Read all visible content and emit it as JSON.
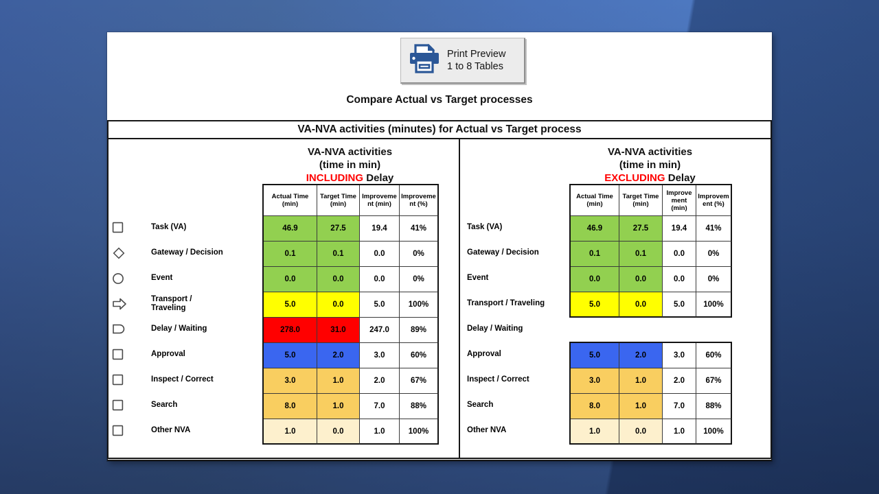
{
  "print_button": {
    "label_line1": "Print Preview",
    "label_line2": "1 to 8 Tables",
    "icon": "printer-icon",
    "icon_color": "#2b5797"
  },
  "page_title": "Compare Actual vs Target processes",
  "band_title": "VA-NVA activities (minutes) for Actual vs Target process",
  "emphasis_color": "#FF0000",
  "status_colors": {
    "value_added_green": "#92D050",
    "transport_yellow": "#FFFF00",
    "delay_red": "#FF0000",
    "approval_blue": "#3A66F0",
    "nva_amber": "#F9CE60",
    "other_cream": "#FDF0CD"
  },
  "tables": [
    {
      "heading_line1": "VA-NVA activities",
      "heading_line2": "(time in min)",
      "heading_emphasis": "INCLUDING",
      "heading_rest": " Delay",
      "columns": [
        "Actual Time (min)",
        "Target Time (min)",
        "Improvement (min)",
        "Improvement (%)"
      ],
      "show_icons": true,
      "rows": [
        {
          "icon": "square",
          "label": "Task (VA)",
          "fill": "#92D050",
          "values": [
            "46.9",
            "27.5",
            "19.4",
            "41%"
          ]
        },
        {
          "icon": "diamond",
          "label": "Gateway / Decision",
          "fill": "#92D050",
          "values": [
            "0.1",
            "0.1",
            "0.0",
            "0%"
          ]
        },
        {
          "icon": "circle",
          "label": "Event",
          "fill": "#92D050",
          "values": [
            "0.0",
            "0.0",
            "0.0",
            "0%"
          ]
        },
        {
          "icon": "arrow-right",
          "label": "Transport / Traveling",
          "fill": "#FFFF00",
          "values": [
            "5.0",
            "0.0",
            "5.0",
            "100%"
          ]
        },
        {
          "icon": "delay",
          "label": "Delay / Waiting",
          "fill": "#FF0000",
          "values": [
            "278.0",
            "31.0",
            "247.0",
            "89%"
          ]
        },
        {
          "icon": "square",
          "label": "Approval",
          "fill": "#3A66F0",
          "values": [
            "5.0",
            "2.0",
            "3.0",
            "60%"
          ]
        },
        {
          "icon": "square",
          "label": "Inspect / Correct",
          "fill": "#F9CE60",
          "values": [
            "3.0",
            "1.0",
            "2.0",
            "67%"
          ]
        },
        {
          "icon": "square",
          "label": "Search",
          "fill": "#F9CE60",
          "values": [
            "8.0",
            "1.0",
            "7.0",
            "88%"
          ]
        },
        {
          "icon": "square",
          "label": "Other NVA",
          "fill": "#FDF0CD",
          "values": [
            "1.0",
            "0.0",
            "1.0",
            "100%"
          ]
        }
      ]
    },
    {
      "heading_line1": "VA-NVA activities",
      "heading_line2": "(time in min)",
      "heading_emphasis": "EXCLUDING",
      "heading_rest": " Delay",
      "columns": [
        "Actual Time (min)",
        "Target Time (min)",
        "Improvement (min)",
        "Improvement (%)"
      ],
      "show_icons": false,
      "rows": [
        {
          "label": "Task (VA)",
          "fill": "#92D050",
          "values": [
            "46.9",
            "27.5",
            "19.4",
            "41%"
          ]
        },
        {
          "label": "Gateway / Decision",
          "fill": "#92D050",
          "values": [
            "0.1",
            "0.1",
            "0.0",
            "0%"
          ]
        },
        {
          "label": "Event",
          "fill": "#92D050",
          "values": [
            "0.0",
            "0.0",
            "0.0",
            "0%"
          ]
        },
        {
          "label": "Transport / Traveling",
          "fill": "#FFFF00",
          "values": [
            "5.0",
            "0.0",
            "5.0",
            "100%"
          ]
        },
        {
          "label": "Delay / Waiting",
          "empty": true
        },
        {
          "label": "Approval",
          "fill": "#3A66F0",
          "values": [
            "5.0",
            "2.0",
            "3.0",
            "60%"
          ]
        },
        {
          "label": "Inspect / Correct",
          "fill": "#F9CE60",
          "values": [
            "3.0",
            "1.0",
            "2.0",
            "67%"
          ]
        },
        {
          "label": "Search",
          "fill": "#F9CE60",
          "values": [
            "8.0",
            "1.0",
            "7.0",
            "88%"
          ]
        },
        {
          "label": "Other NVA",
          "fill": "#FDF0CD",
          "values": [
            "1.0",
            "0.0",
            "1.0",
            "100%"
          ]
        }
      ]
    }
  ]
}
